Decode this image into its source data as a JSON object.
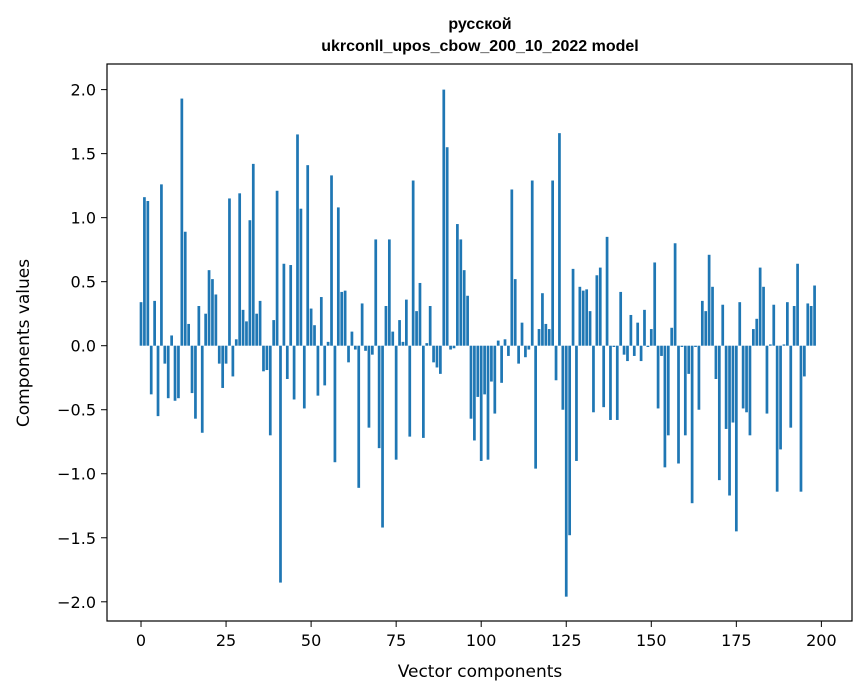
{
  "chart_data": {
    "type": "bar",
    "title_line1": "русской",
    "title_line2": "ukrconll_upos_cbow_200_10_2022 model",
    "xlabel": "Vector components",
    "ylabel": "Components values",
    "xlim": [
      -10,
      209
    ],
    "ylim": [
      -2.15,
      2.2
    ],
    "xticks": [
      0,
      25,
      50,
      75,
      100,
      125,
      150,
      175,
      200
    ],
    "yticks": [
      -2.0,
      -1.5,
      -1.0,
      -0.5,
      0.0,
      0.5,
      1.0,
      1.5,
      2.0
    ],
    "ytick_labels": [
      "−2.0",
      "−1.5",
      "−1.0",
      "−0.5",
      "0.0",
      "0.5",
      "1.0",
      "1.5",
      "2.0"
    ],
    "bar_color": "#1f77b4",
    "grid": false,
    "values": [
      0.34,
      1.16,
      1.13,
      -0.38,
      0.35,
      -0.55,
      1.26,
      -0.14,
      -0.41,
      0.08,
      -0.43,
      -0.41,
      1.93,
      0.89,
      0.17,
      -0.37,
      -0.57,
      0.31,
      -0.68,
      0.25,
      0.59,
      0.52,
      0.4,
      -0.14,
      -0.33,
      -0.14,
      1.15,
      -0.24,
      0.05,
      1.19,
      0.28,
      0.19,
      0.98,
      1.42,
      0.25,
      0.35,
      -0.2,
      -0.19,
      -0.7,
      0.2,
      1.21,
      -1.85,
      0.64,
      -0.26,
      0.63,
      -0.42,
      1.65,
      1.07,
      -0.49,
      1.41,
      0.29,
      0.16,
      -0.39,
      0.38,
      -0.31,
      0.03,
      1.33,
      -0.91,
      1.08,
      0.42,
      0.43,
      -0.13,
      0.11,
      -0.03,
      -1.11,
      0.33,
      -0.04,
      -0.64,
      -0.07,
      0.83,
      -0.8,
      -1.42,
      0.31,
      0.83,
      0.11,
      -0.89,
      0.2,
      0.03,
      0.36,
      -0.71,
      1.29,
      0.27,
      0.49,
      -0.72,
      0.02,
      0.31,
      -0.13,
      -0.17,
      -0.22,
      2.0,
      1.55,
      -0.03,
      -0.02,
      0.95,
      0.83,
      0.59,
      0.39,
      -0.57,
      -0.74,
      -0.4,
      -0.9,
      -0.38,
      -0.89,
      -0.28,
      -0.53,
      0.04,
      -0.29,
      0.05,
      -0.08,
      1.22,
      0.52,
      -0.14,
      0.18,
      -0.09,
      -0.03,
      1.29,
      -0.96,
      0.13,
      0.41,
      0.17,
      0.13,
      1.29,
      -0.27,
      1.66,
      -0.5,
      -1.96,
      -1.48,
      0.6,
      -0.9,
      0.46,
      0.43,
      0.44,
      0.27,
      -0.52,
      0.55,
      0.61,
      -0.48,
      0.85,
      -0.58,
      -0.01,
      -0.58,
      0.42,
      -0.07,
      -0.12,
      0.24,
      -0.08,
      0.18,
      -0.12,
      0.28,
      -0.01,
      0.13,
      0.65,
      -0.49,
      -0.08,
      -0.95,
      -0.7,
      0.14,
      0.8,
      -0.92,
      -0.01,
      -0.7,
      -0.22,
      -1.23,
      -0.01,
      -0.5,
      0.35,
      0.27,
      0.71,
      0.46,
      -0.26,
      -1.05,
      0.32,
      -0.65,
      -1.17,
      -0.6,
      -1.45,
      0.34,
      -0.49,
      -0.52,
      -0.7,
      0.13,
      0.21,
      0.61,
      0.46,
      -0.53,
      0.01,
      0.32,
      -1.14,
      -0.81,
      0.01,
      0.34,
      -0.64,
      0.31,
      0.64,
      -1.14,
      -0.24,
      0.33,
      0.31,
      0.47
    ]
  }
}
